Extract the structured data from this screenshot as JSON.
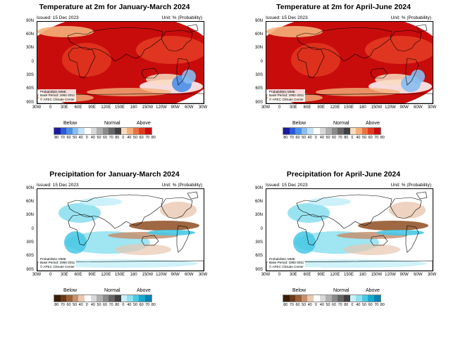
{
  "panels": [
    {
      "title": "Temperature at 2m for January-March 2024",
      "issued": "Issued: 15 Dec 2023",
      "unit": "Unit: % (Probability)",
      "info": [
        "Probabilistic MME",
        "Base Period: 1992-2011",
        "© APEC Climate Center"
      ],
      "variable": "temperature",
      "legend_ticks": [
        "80",
        "70",
        "60",
        "50",
        "40",
        "0",
        "40",
        "50",
        "60",
        "70",
        "80",
        "0",
        "40",
        "50",
        "60",
        "70",
        "80"
      ]
    },
    {
      "title": "Temperature at 2m for April-June 2024",
      "issued": "Issued: 15 Dec 2023",
      "unit": "Unit: % (Probability)",
      "info": [
        "Probabilistic MME",
        "Base Period: 1992-2011",
        "© APEC Climate Center"
      ],
      "variable": "temperature",
      "legend_ticks": [
        "80",
        "70",
        "60",
        "50",
        "40",
        "0",
        "40",
        "50",
        "60",
        "70",
        "80",
        "0",
        "40",
        "50",
        "60",
        "70",
        "80"
      ]
    },
    {
      "title": "Precipitation for January-March 2024",
      "issued": "Issued: 15 Dec 2023",
      "unit": "Unit: % (Probability)",
      "info": [
        "Probabilistic MME",
        "Base Period: 1992-2011",
        "© APEC Climate Center"
      ],
      "variable": "precipitation",
      "legend_ticks": [
        "80",
        "70",
        "60",
        "50",
        "40",
        "0",
        "40",
        "50",
        "60",
        "70",
        "80",
        "0",
        "40",
        "50",
        "60",
        "70",
        "80"
      ]
    },
    {
      "title": "Precipitation for April-June 2024",
      "issued": "Issued: 15 Dec 2023",
      "unit": "Unit: % (Probability)",
      "info": [
        "Probabilistic MME",
        "Base Period: 1992-2011",
        "© APEC Climate Center"
      ],
      "variable": "precipitation",
      "legend_ticks": [
        "80",
        "70",
        "60",
        "50",
        "40",
        "0",
        "40",
        "50",
        "60",
        "70",
        "80",
        "0",
        "40",
        "50",
        "60",
        "70",
        "80"
      ]
    }
  ],
  "lat_labels": [
    "90N",
    "60N",
    "30N",
    "0",
    "30S",
    "60S",
    "90S"
  ],
  "lon_labels": [
    "30W",
    "0",
    "30E",
    "60E",
    "90E",
    "120E",
    "150E",
    "180",
    "150W",
    "120W",
    "90W",
    "60W",
    "30W"
  ],
  "legend_headings": {
    "below": "Below",
    "normal": "Normal",
    "above": "Above"
  },
  "colors": {
    "temperature": {
      "below": [
        "#1a1aa0",
        "#2a5ad8",
        "#4a8ee8",
        "#88bdf0",
        "#c4e0f8"
      ],
      "normal": [
        "#ffffff",
        "#d8d8d8",
        "#b0b0b0",
        "#8a8a8a",
        "#666666",
        "#404040"
      ],
      "above": [
        "#f8dcc0",
        "#f4b07a",
        "#ec7040",
        "#e23a22",
        "#c80c0c"
      ]
    },
    "precipitation": {
      "below": [
        "#3a1e0a",
        "#6a3a1a",
        "#9a6038",
        "#c49070",
        "#e8c8b0"
      ],
      "normal": [
        "#ffffff",
        "#d8d8d8",
        "#b0b0b0",
        "#8a8a8a",
        "#666666",
        "#404040"
      ],
      "above": [
        "#c8f0f8",
        "#8ee0f0",
        "#48c8e4",
        "#18a8d0",
        "#0a82b0"
      ]
    }
  }
}
